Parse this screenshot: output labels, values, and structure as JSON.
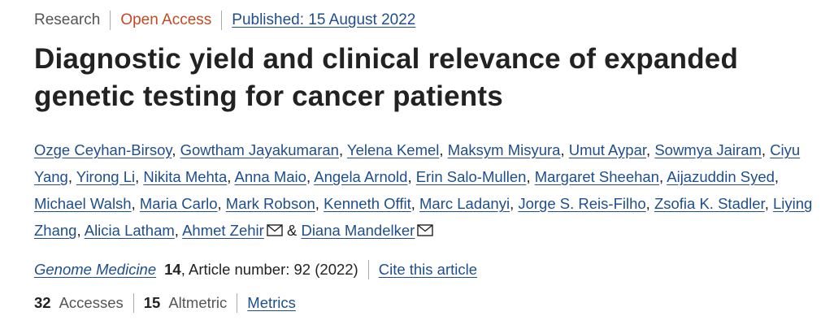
{
  "meta": {
    "type_label": "Research",
    "access_label": "Open Access",
    "published_label": "Published: 15 August 2022",
    "access_color": "#c04b23",
    "link_color": "#1f4e8c"
  },
  "article": {
    "title": "Diagnostic yield and clinical relevance of expanded genetic testing for cancer patients"
  },
  "authors": [
    {
      "name": "Ozge Ceyhan-Birsoy"
    },
    {
      "name": "Gowtham Jayakumaran"
    },
    {
      "name": "Yelena Kemel"
    },
    {
      "name": "Maksym Misyura"
    },
    {
      "name": "Umut Aypar"
    },
    {
      "name": "Sowmya Jairam"
    },
    {
      "name": "Ciyu Yang"
    },
    {
      "name": "Yirong Li"
    },
    {
      "name": "Nikita Mehta"
    },
    {
      "name": "Anna Maio"
    },
    {
      "name": "Angela Arnold"
    },
    {
      "name": "Erin Salo-Mullen"
    },
    {
      "name": "Margaret Sheehan"
    },
    {
      "name": "Aijazuddin Syed"
    },
    {
      "name": "Michael Walsh"
    },
    {
      "name": "Maria Carlo"
    },
    {
      "name": "Mark Robson"
    },
    {
      "name": "Kenneth Offit"
    },
    {
      "name": "Marc Ladanyi"
    },
    {
      "name": "Jorge S. Reis-Filho"
    },
    {
      "name": "Zsofia K. Stadler"
    },
    {
      "name": "Liying Zhang"
    },
    {
      "name": "Alicia Latham"
    },
    {
      "name": "Ahmet Zehir"
    },
    {
      "name": "Diana Mandelker"
    }
  ],
  "authors_conjunction": "&",
  "citation": {
    "journal": "Genome Medicine",
    "volume": "14",
    "article_number_text": ", Article number: 92 (2022)",
    "cite_label": "Cite this article"
  },
  "metrics": {
    "accesses_count": "32",
    "accesses_label": "Accesses",
    "altmetric_count": "15",
    "altmetric_label": "Altmetric",
    "metrics_link_label": "Metrics"
  },
  "icons": {
    "mail": "mail-icon"
  }
}
